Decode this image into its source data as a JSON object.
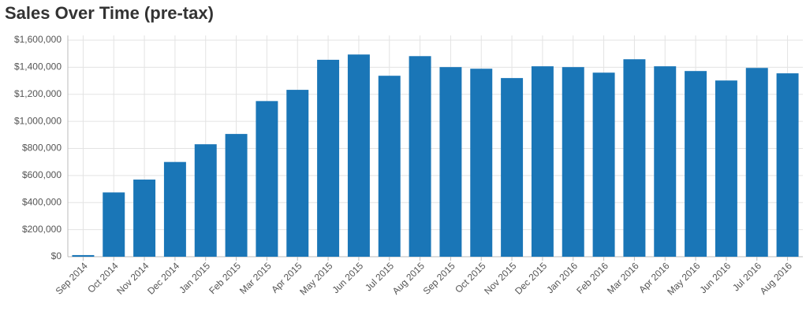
{
  "chart_data": {
    "type": "bar",
    "title": "Sales Over Time (pre-tax)",
    "categories": [
      "Sep 2014",
      "Oct 2014",
      "Nov 2014",
      "Dec 2014",
      "Jan 2015",
      "Feb 2015",
      "Mar 2015",
      "Apr 2015",
      "May 2015",
      "Jun 2015",
      "Jul 2015",
      "Aug 2015",
      "Sep 2015",
      "Oct 2015",
      "Nov 2015",
      "Dec 2015",
      "Jan 2016",
      "Feb 2016",
      "Mar 2016",
      "Apr 2016",
      "May 2016",
      "Jun 2016",
      "Jul 2016",
      "Aug 2016"
    ],
    "values": [
      12000,
      475000,
      570000,
      700000,
      831000,
      907000,
      1150000,
      1233000,
      1455000,
      1494000,
      1337000,
      1482000,
      1401000,
      1389000,
      1320000,
      1407000,
      1401000,
      1360000,
      1459000,
      1407000,
      1372000,
      1302000,
      1395000,
      1355000
    ],
    "color": "#1a76b7",
    "ylim": [
      0,
      1600000
    ],
    "yticks": [
      {
        "value": 0,
        "label": "$0"
      },
      {
        "value": 200000,
        "label": "$200,000"
      },
      {
        "value": 400000,
        "label": "$400,000"
      },
      {
        "value": 600000,
        "label": "$600,000"
      },
      {
        "value": 800000,
        "label": "$800,000"
      },
      {
        "value": 1000000,
        "label": "$1,000,000"
      },
      {
        "value": 1200000,
        "label": "$1,200,000"
      },
      {
        "value": 1400000,
        "label": "$1,400,000"
      },
      {
        "value": 1600000,
        "label": "$1,600,000"
      }
    ],
    "grid": true
  }
}
